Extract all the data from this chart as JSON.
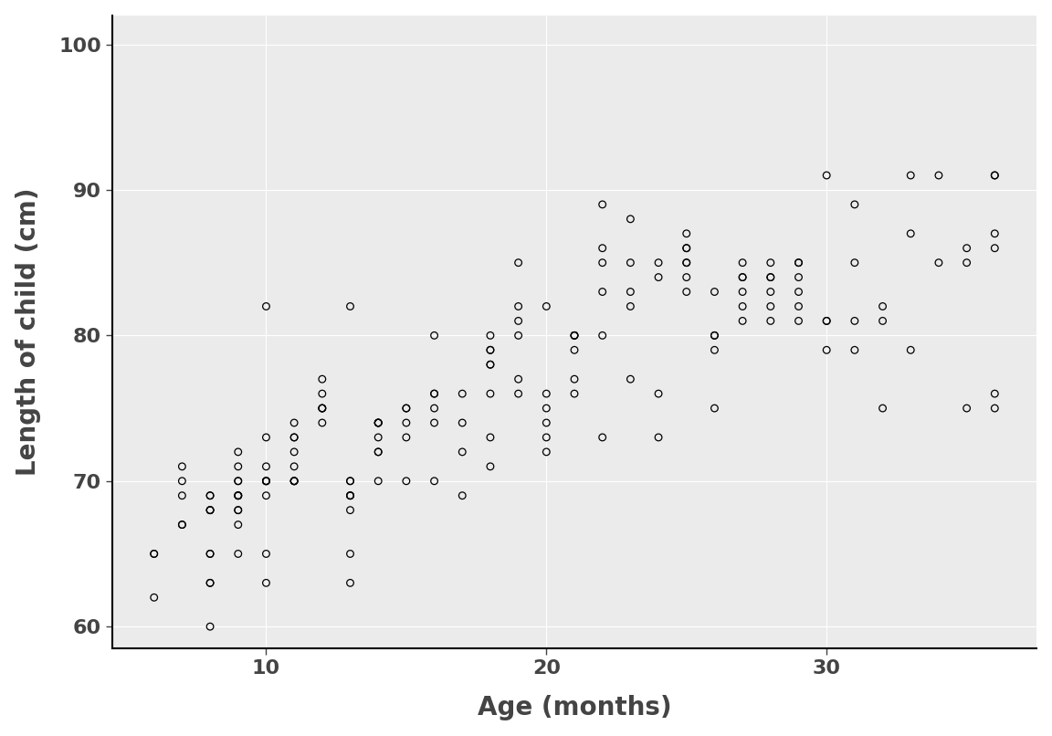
{
  "x": [
    6,
    6,
    6,
    7,
    7,
    7,
    7,
    7,
    8,
    8,
    8,
    8,
    8,
    8,
    8,
    8,
    8,
    8,
    9,
    9,
    9,
    9,
    9,
    9,
    9,
    9,
    9,
    9,
    9,
    9,
    10,
    10,
    10,
    10,
    10,
    10,
    10,
    10,
    10,
    10,
    11,
    11,
    11,
    11,
    11,
    11,
    11,
    11,
    11,
    12,
    12,
    12,
    12,
    12,
    12,
    13,
    13,
    13,
    13,
    13,
    13,
    13,
    13,
    13,
    14,
    14,
    14,
    14,
    14,
    14,
    14,
    14,
    15,
    15,
    15,
    15,
    15,
    16,
    16,
    16,
    16,
    16,
    16,
    17,
    17,
    17,
    17,
    18,
    18,
    18,
    18,
    18,
    18,
    18,
    18,
    19,
    19,
    19,
    19,
    19,
    19,
    20,
    20,
    20,
    20,
    20,
    20,
    21,
    21,
    21,
    21,
    21,
    21,
    22,
    22,
    22,
    22,
    22,
    22,
    23,
    23,
    23,
    23,
    23,
    24,
    24,
    24,
    24,
    25,
    25,
    25,
    25,
    25,
    25,
    25,
    26,
    26,
    26,
    26,
    26,
    27,
    27,
    27,
    27,
    27,
    27,
    28,
    28,
    28,
    28,
    28,
    28,
    29,
    29,
    29,
    29,
    29,
    29,
    30,
    30,
    30,
    30,
    31,
    31,
    31,
    31,
    32,
    32,
    32,
    33,
    33,
    33,
    34,
    34,
    35,
    35,
    35,
    36,
    36,
    36,
    36,
    36,
    36
  ],
  "y": [
    62,
    65,
    65,
    67,
    67,
    69,
    70,
    71,
    60,
    63,
    63,
    65,
    65,
    68,
    68,
    68,
    69,
    69,
    65,
    67,
    68,
    68,
    69,
    69,
    69,
    69,
    70,
    70,
    71,
    72,
    63,
    65,
    69,
    70,
    70,
    70,
    70,
    71,
    73,
    82,
    70,
    70,
    70,
    70,
    71,
    72,
    73,
    73,
    74,
    74,
    75,
    75,
    75,
    76,
    77,
    63,
    65,
    68,
    69,
    69,
    69,
    70,
    70,
    82,
    70,
    72,
    72,
    73,
    74,
    74,
    74,
    74,
    70,
    73,
    74,
    75,
    75,
    70,
    74,
    75,
    76,
    76,
    80,
    69,
    72,
    74,
    76,
    71,
    73,
    76,
    78,
    78,
    79,
    79,
    80,
    76,
    77,
    80,
    81,
    82,
    85,
    72,
    73,
    74,
    75,
    76,
    82,
    76,
    77,
    79,
    80,
    80,
    80,
    73,
    80,
    83,
    85,
    86,
    89,
    77,
    82,
    83,
    85,
    88,
    73,
    76,
    84,
    85,
    83,
    84,
    85,
    85,
    86,
    86,
    87,
    75,
    79,
    80,
    80,
    83,
    81,
    82,
    83,
    84,
    84,
    85,
    81,
    82,
    83,
    84,
    84,
    85,
    81,
    82,
    83,
    84,
    85,
    85,
    79,
    81,
    81,
    91,
    79,
    81,
    85,
    89,
    75,
    81,
    82,
    79,
    87,
    91,
    85,
    91,
    75,
    85,
    86,
    75,
    76,
    86,
    87,
    91,
    91
  ],
  "xlabel": "Age (months)",
  "ylabel": "Length of child (cm)",
  "xlim": [
    4.5,
    37.5
  ],
  "ylim": [
    58.5,
    102
  ],
  "xticks": [
    10,
    20,
    30
  ],
  "yticks": [
    60,
    70,
    80,
    90,
    100
  ],
  "panel_bg": "#ebebeb",
  "fig_bg": "#ffffff",
  "grid_color": "#ffffff",
  "marker_color": "#000000",
  "marker_facecolor": "none",
  "marker_size": 5.5,
  "marker_linewidth": 0.9,
  "xlabel_fontsize": 20,
  "ylabel_fontsize": 20,
  "tick_fontsize": 16,
  "font_color": "#444444"
}
